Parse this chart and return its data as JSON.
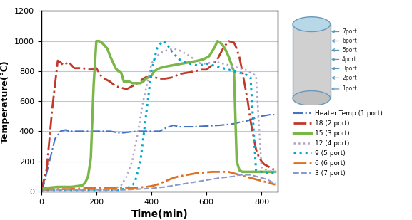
{
  "xlabel": "Time(min)",
  "ylabel": "Temperature(℃)",
  "xlim": [
    0,
    860
  ],
  "ylim": [
    0,
    1200
  ],
  "xticks": [
    0,
    200,
    400,
    600,
    800
  ],
  "yticks": [
    0,
    200,
    400,
    600,
    800,
    1000,
    1200
  ],
  "grid_color": "#aaccee",
  "bg_color": "#ffffff",
  "heater": {
    "x": [
      0,
      10,
      30,
      50,
      70,
      90,
      100,
      120,
      150,
      180,
      200,
      220,
      250,
      280,
      300,
      320,
      350,
      380,
      400,
      430,
      450,
      480,
      500,
      550,
      600,
      650,
      700,
      720,
      750,
      780,
      800,
      830,
      850
    ],
    "y": [
      0,
      50,
      200,
      350,
      400,
      410,
      400,
      400,
      400,
      400,
      400,
      400,
      400,
      390,
      390,
      395,
      400,
      400,
      400,
      400,
      420,
      440,
      430,
      430,
      435,
      440,
      450,
      460,
      470,
      490,
      500,
      510,
      510
    ],
    "color": "#4472c4",
    "linestyle": "-.",
    "linewidth": 1.5,
    "label": "Heater Temp (1 port)"
  },
  "port2": {
    "x": [
      0,
      20,
      40,
      60,
      70,
      80,
      90,
      100,
      120,
      150,
      180,
      200,
      220,
      250,
      270,
      290,
      310,
      330,
      350,
      370,
      380,
      390,
      410,
      430,
      450,
      480,
      500,
      530,
      560,
      580,
      600,
      620,
      640,
      660,
      680,
      700,
      710,
      720,
      730,
      740,
      750,
      760,
      770,
      780,
      790,
      800,
      810,
      820,
      830,
      840,
      850
    ],
    "y": [
      0,
      150,
      550,
      870,
      860,
      840,
      850,
      860,
      820,
      820,
      810,
      820,
      760,
      730,
      700,
      690,
      680,
      700,
      720,
      750,
      760,
      760,
      760,
      750,
      750,
      760,
      780,
      790,
      800,
      810,
      810,
      840,
      880,
      950,
      1000,
      990,
      950,
      890,
      800,
      700,
      600,
      470,
      370,
      280,
      230,
      200,
      180,
      170,
      160,
      150,
      140
    ],
    "color": "#c0392b",
    "linestyle": "-.",
    "linewidth": 2.0,
    "label": "18 (2 port)"
  },
  "port3": {
    "x": [
      0,
      30,
      60,
      90,
      110,
      130,
      150,
      160,
      170,
      180,
      190,
      200,
      210,
      220,
      230,
      240,
      250,
      260,
      270,
      280,
      290,
      300,
      310,
      320,
      330,
      340,
      350,
      360,
      370,
      380,
      390,
      400,
      410,
      430,
      450,
      480,
      510,
      540,
      570,
      590,
      610,
      630,
      640,
      650,
      660,
      670,
      680,
      690,
      695,
      700,
      710,
      720,
      730,
      740,
      750,
      760,
      770,
      780,
      790,
      800,
      820,
      840,
      850
    ],
    "y": [
      20,
      25,
      30,
      30,
      30,
      35,
      40,
      60,
      100,
      220,
      700,
      1000,
      1000,
      990,
      970,
      950,
      900,
      860,
      820,
      800,
      790,
      730,
      730,
      730,
      720,
      720,
      720,
      720,
      730,
      750,
      760,
      770,
      800,
      820,
      830,
      840,
      850,
      860,
      870,
      880,
      900,
      960,
      1000,
      990,
      970,
      940,
      900,
      850,
      820,
      800,
      200,
      140,
      130,
      130,
      130,
      130,
      130,
      130,
      130,
      130,
      130,
      130,
      130
    ],
    "color": "#7ab648",
    "linestyle": "-",
    "linewidth": 2.5,
    "label": "15 (3 port)"
  },
  "port4": {
    "x": [
      0,
      50,
      100,
      150,
      200,
      230,
      250,
      270,
      290,
      310,
      330,
      350,
      370,
      390,
      400,
      420,
      440,
      460,
      480,
      500,
      520,
      540,
      560,
      580,
      600,
      620,
      640,
      660,
      680,
      700,
      720,
      740,
      760,
      780,
      800,
      820,
      840,
      850
    ],
    "y": [
      10,
      10,
      10,
      10,
      10,
      10,
      10,
      20,
      40,
      100,
      200,
      380,
      600,
      760,
      850,
      900,
      930,
      940,
      950,
      940,
      920,
      900,
      870,
      850,
      850,
      860,
      860,
      850,
      840,
      830,
      820,
      810,
      790,
      770,
      160,
      140,
      130,
      130
    ],
    "color": "#b0a0c8",
    "linestyle": ":",
    "linewidth": 1.8,
    "label": "12 (4 port)"
  },
  "port5": {
    "x": [
      0,
      50,
      100,
      150,
      200,
      280,
      310,
      330,
      340,
      360,
      380,
      400,
      420,
      440,
      450,
      460,
      470,
      480,
      490,
      500,
      520,
      540,
      560,
      580,
      600,
      620,
      640,
      660,
      680,
      700,
      720,
      740,
      760,
      780,
      800,
      820,
      840,
      850
    ],
    "y": [
      10,
      10,
      10,
      10,
      10,
      10,
      20,
      40,
      60,
      200,
      500,
      800,
      950,
      1000,
      990,
      970,
      940,
      920,
      900,
      880,
      860,
      850,
      840,
      840,
      850,
      840,
      830,
      820,
      810,
      800,
      790,
      780,
      760,
      140,
      130,
      120,
      120,
      120
    ],
    "color": "#00aacc",
    "linestyle": ":",
    "linewidth": 2.2,
    "label": "9 (5 port)"
  },
  "port6": {
    "x": [
      0,
      50,
      100,
      150,
      200,
      250,
      300,
      350,
      380,
      400,
      420,
      440,
      460,
      480,
      500,
      530,
      560,
      590,
      620,
      650,
      680,
      700,
      720,
      740,
      760,
      780,
      800,
      820,
      840,
      850
    ],
    "y": [
      10,
      15,
      15,
      20,
      25,
      25,
      25,
      25,
      30,
      35,
      45,
      60,
      75,
      90,
      100,
      110,
      120,
      125,
      130,
      130,
      130,
      120,
      110,
      100,
      90,
      80,
      70,
      60,
      50,
      45
    ],
    "color": "#e07020",
    "linestyle": "-.",
    "linewidth": 2.0,
    "label": "6 (6 port)"
  },
  "port7": {
    "x": [
      0,
      50,
      100,
      150,
      200,
      250,
      300,
      350,
      400,
      450,
      500,
      550,
      600,
      650,
      700,
      720,
      740,
      760,
      780,
      800,
      820,
      840,
      850
    ],
    "y": [
      10,
      10,
      10,
      10,
      10,
      10,
      10,
      15,
      20,
      30,
      45,
      60,
      75,
      90,
      100,
      110,
      110,
      110,
      100,
      90,
      80,
      60,
      55
    ],
    "color": "#8899cc",
    "linestyle": "--",
    "linewidth": 1.5,
    "label": "3 (7 port)"
  },
  "port_labels": [
    "7port",
    "6port",
    "5port",
    "4port",
    "3port",
    "2port",
    "1port"
  ],
  "arrow_color": "#5599bb",
  "cyl_body_color": "#d0d0d0",
  "cyl_top_color": "#b8d8e8",
  "cyl_edge_color": "#6699bb"
}
